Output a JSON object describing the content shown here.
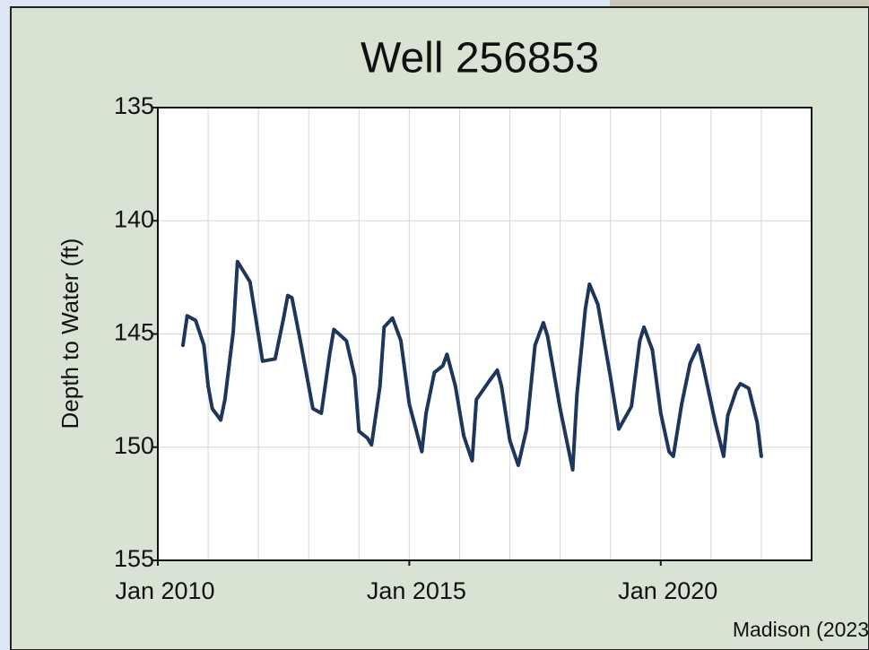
{
  "chart_data": {
    "type": "line",
    "title": "Well 256853",
    "ylabel": "Depth to Water (ft)",
    "source": "Madison (2023",
    "ylim": [
      135,
      155
    ],
    "y_inverted": true,
    "yticks": [
      135,
      140,
      145,
      150,
      155
    ],
    "xlim": [
      "2010-01",
      "2023-01"
    ],
    "xticks": [
      {
        "value": "2010-01",
        "label": "Jan 2010"
      },
      {
        "value": "2015-01",
        "label": "Jan 2015"
      },
      {
        "value": "2020-01",
        "label": "Jan 2020"
      }
    ],
    "xgrid": [
      "2011-01",
      "2012-01",
      "2013-01",
      "2014-01",
      "2016-01",
      "2017-01",
      "2018-01",
      "2019-01",
      "2021-01",
      "2022-01"
    ],
    "grid": true,
    "x": [
      "2010-07",
      "2010-08",
      "2010-10",
      "2010-12",
      "2011-01",
      "2011-02",
      "2011-04",
      "2011-05",
      "2011-07",
      "2011-08",
      "2011-11",
      "2012-02",
      "2012-05",
      "2012-07",
      "2012-08",
      "2012-09",
      "2012-11",
      "2013-02",
      "2013-04",
      "2013-06",
      "2013-07",
      "2013-10",
      "2013-12",
      "2014-01",
      "2014-03",
      "2014-04",
      "2014-06",
      "2014-07",
      "2014-09",
      "2014-11",
      "2015-01",
      "2015-04",
      "2015-05",
      "2015-07",
      "2015-09",
      "2015-10",
      "2015-12",
      "2016-02",
      "2016-04",
      "2016-05",
      "2016-08",
      "2016-10",
      "2016-11",
      "2017-01",
      "2017-03",
      "2017-05",
      "2017-07",
      "2017-09",
      "2017-10",
      "2018-01",
      "2018-04",
      "2018-05",
      "2018-07",
      "2018-08",
      "2018-10",
      "2019-01",
      "2019-03",
      "2019-06",
      "2019-08",
      "2019-09",
      "2019-11",
      "2020-01",
      "2020-03",
      "2020-04",
      "2020-06",
      "2020-08",
      "2020-10",
      "2020-11",
      "2021-02",
      "2021-04",
      "2021-05",
      "2021-07",
      "2021-08",
      "2021-10",
      "2021-12",
      "2022-01"
    ],
    "series": [
      {
        "color": "#1e355c",
        "values": [
          145.5,
          144.2,
          144.4,
          145.5,
          147.3,
          148.3,
          148.8,
          147.9,
          144.9,
          141.8,
          142.7,
          146.2,
          146.1,
          144.3,
          143.3,
          143.4,
          145.3,
          148.3,
          148.5,
          145.9,
          144.8,
          145.3,
          146.9,
          149.3,
          149.6,
          149.9,
          147.3,
          144.7,
          144.3,
          145.3,
          148.1,
          150.2,
          148.5,
          146.7,
          146.4,
          145.9,
          147.3,
          149.5,
          150.6,
          147.9,
          147.1,
          146.6,
          147.3,
          149.7,
          150.8,
          149.2,
          145.5,
          144.5,
          145.1,
          148.3,
          151.0,
          147.7,
          143.9,
          142.8,
          143.7,
          146.9,
          149.2,
          148.2,
          145.3,
          144.7,
          145.7,
          148.5,
          150.2,
          150.4,
          148.1,
          146.3,
          145.5,
          146.3,
          148.9,
          150.4,
          148.6,
          147.5,
          147.2,
          147.4,
          148.9,
          150.4
        ]
      }
    ]
  }
}
